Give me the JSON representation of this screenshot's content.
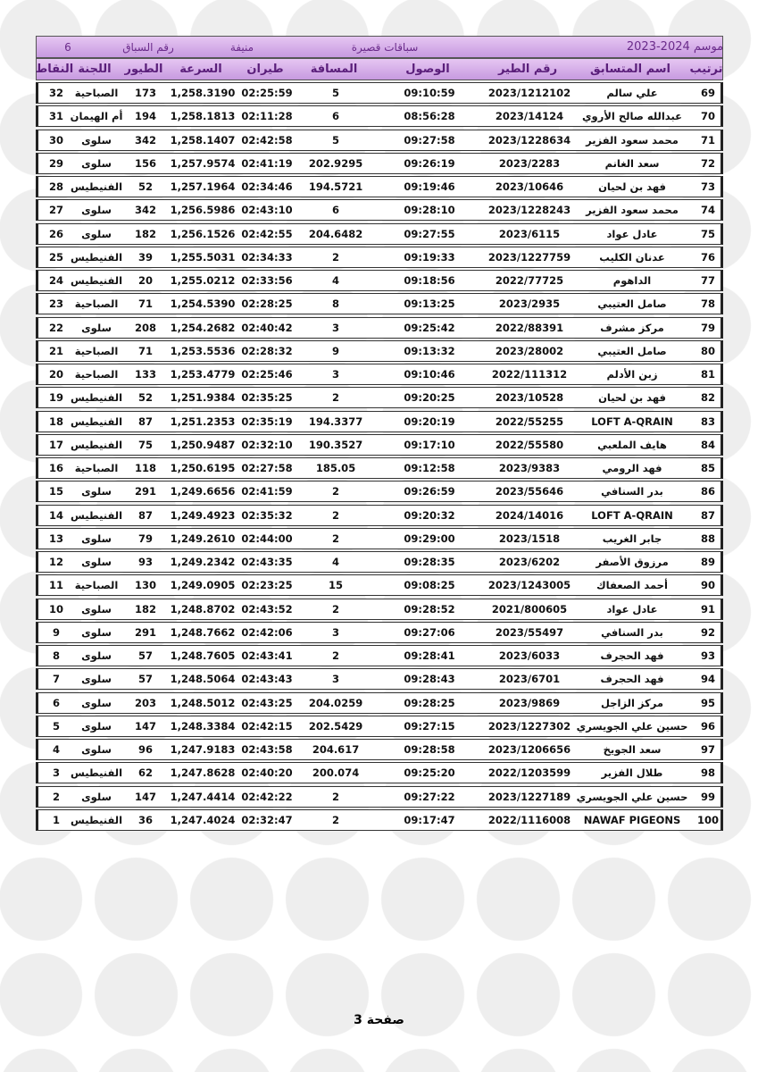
{
  "header": {
    "season": "موسم 2024-2023",
    "race_type": "سباقات قصيرة",
    "location": "منيفة",
    "race_number_label": "رقم السباق",
    "race_number": "6"
  },
  "table": {
    "columns": [
      "ترتيب",
      "اسم المتسابق",
      "رقم الطير",
      "الوصول",
      "المسافة",
      "طيران",
      "السرعة",
      "الطيور",
      "اللجنة",
      "النقاط"
    ],
    "rows": [
      [
        "69",
        "علي سالم",
        "2023/1212102",
        "09:10:59",
        "5",
        "02:25:59",
        "1,258.3190",
        "173",
        "الصباحية",
        "32"
      ],
      [
        "70",
        "عبدالله صالح الأروي",
        "2023/14124",
        "08:56:28",
        "6",
        "02:11:28",
        "1,258.1813",
        "194",
        "أم الهيمان",
        "31"
      ],
      [
        "71",
        "محمد سعود الفزير",
        "2023/1228634",
        "09:27:58",
        "5",
        "02:42:58",
        "1,258.1407",
        "342",
        "سلوى",
        "30"
      ],
      [
        "72",
        "سعد الغانم",
        "2023/2283",
        "09:26:19",
        "202.9295",
        "02:41:19",
        "1,257.9574",
        "156",
        "سلوى",
        "29"
      ],
      [
        "73",
        "فهد بن لحيان",
        "2023/10646",
        "09:19:46",
        "194.5721",
        "02:34:46",
        "1,257.1964",
        "52",
        "الفنيطيس",
        "28"
      ],
      [
        "74",
        "محمد سعود الفزير",
        "2023/1228243",
        "09:28:10",
        "6",
        "02:43:10",
        "1,256.5986",
        "342",
        "سلوى",
        "27"
      ],
      [
        "75",
        "عادل عواد",
        "2023/6115",
        "09:27:55",
        "204.6482",
        "02:42:55",
        "1,256.1526",
        "182",
        "سلوى",
        "26"
      ],
      [
        "76",
        "عدنان الكليب",
        "2023/1227759",
        "09:19:33",
        "2",
        "02:34:33",
        "1,255.5031",
        "39",
        "الفنيطيس",
        "25"
      ],
      [
        "77",
        "الداهوم",
        "2022/77725",
        "09:18:56",
        "4",
        "02:33:56",
        "1,255.0212",
        "20",
        "الفنيطيس",
        "24"
      ],
      [
        "78",
        "صامل العتيبي",
        "2023/2935",
        "09:13:25",
        "8",
        "02:28:25",
        "1,254.5390",
        "71",
        "الصباحية",
        "23"
      ],
      [
        "79",
        "مركز مشرف",
        "2022/88391",
        "09:25:42",
        "3",
        "02:40:42",
        "1,254.2682",
        "208",
        "سلوى",
        "22"
      ],
      [
        "80",
        "صامل العتيبي",
        "2023/28002",
        "09:13:32",
        "9",
        "02:28:32",
        "1,253.5536",
        "71",
        "الصباحية",
        "21"
      ],
      [
        "81",
        "زبن الأدلم",
        "2022/111312",
        "09:10:46",
        "3",
        "02:25:46",
        "1,253.4779",
        "133",
        "الصباحية",
        "20"
      ],
      [
        "82",
        "فهد بن لحيان",
        "2023/10528",
        "09:20:25",
        "2",
        "02:35:25",
        "1,251.9384",
        "52",
        "الفنيطيس",
        "19"
      ],
      [
        "83",
        "LOFT A-QRAIN",
        "2022/55255",
        "09:20:19",
        "194.3377",
        "02:35:19",
        "1,251.2353",
        "87",
        "الفنيطيس",
        "18"
      ],
      [
        "84",
        "هايف الملعبي",
        "2022/55580",
        "09:17:10",
        "190.3527",
        "02:32:10",
        "1,250.9487",
        "75",
        "الفنيطيس",
        "17"
      ],
      [
        "85",
        "فهد الرومي",
        "2023/9383",
        "09:12:58",
        "185.05",
        "02:27:58",
        "1,250.6195",
        "118",
        "الصباحية",
        "16"
      ],
      [
        "86",
        "بدر السنافي",
        "2023/55646",
        "09:26:59",
        "2",
        "02:41:59",
        "1,249.6656",
        "291",
        "سلوى",
        "15"
      ],
      [
        "87",
        "LOFT A-QRAIN",
        "2024/14016",
        "09:20:32",
        "2",
        "02:35:32",
        "1,249.4923",
        "87",
        "الفنيطيس",
        "14"
      ],
      [
        "88",
        "جابر الغريب",
        "2023/1518",
        "09:29:00",
        "2",
        "02:44:00",
        "1,249.2610",
        "79",
        "سلوى",
        "13"
      ],
      [
        "89",
        "مرزوق الأصفر",
        "2023/6202",
        "09:28:35",
        "4",
        "02:43:35",
        "1,249.2342",
        "93",
        "سلوى",
        "12"
      ],
      [
        "90",
        "أحمد الصعفاك",
        "2023/1243005",
        "09:08:25",
        "15",
        "02:23:25",
        "1,249.0905",
        "130",
        "الصباحية",
        "11"
      ],
      [
        "91",
        "عادل عواد",
        "2021/800605",
        "09:28:52",
        "2",
        "02:43:52",
        "1,248.8702",
        "182",
        "سلوى",
        "10"
      ],
      [
        "92",
        "بدر السنافي",
        "2023/55497",
        "09:27:06",
        "3",
        "02:42:06",
        "1,248.7662",
        "291",
        "سلوى",
        "9"
      ],
      [
        "93",
        "فهد الحجرف",
        "2023/6033",
        "09:28:41",
        "2",
        "02:43:41",
        "1,248.7605",
        "57",
        "سلوى",
        "8"
      ],
      [
        "94",
        "فهد الحجرف",
        "2023/6701",
        "09:28:43",
        "3",
        "02:43:43",
        "1,248.5064",
        "57",
        "سلوى",
        "7"
      ],
      [
        "95",
        "مركز الزاجل",
        "2023/9869",
        "09:28:25",
        "204.0259",
        "02:43:25",
        "1,248.5012",
        "203",
        "سلوى",
        "6"
      ],
      [
        "96",
        "حسين علي الجويسري",
        "2023/1227302",
        "09:27:15",
        "202.5429",
        "02:42:15",
        "1,248.3384",
        "147",
        "سلوى",
        "5"
      ],
      [
        "97",
        "سعد الجويخ",
        "2023/1206656",
        "09:28:58",
        "204.617",
        "02:43:58",
        "1,247.9183",
        "96",
        "سلوى",
        "4"
      ],
      [
        "98",
        "طلال الفزير",
        "2022/1203599",
        "09:25:20",
        "200.074",
        "02:40:20",
        "1,247.8628",
        "62",
        "الفنيطيس",
        "3"
      ],
      [
        "99",
        "حسين علي الجويسري",
        "2023/1227189",
        "09:27:22",
        "2",
        "02:42:22",
        "1,247.4414",
        "147",
        "سلوى",
        "2"
      ],
      [
        "100",
        "NAWAF PIGEONS",
        "2022/1116008",
        "09:17:47",
        "2",
        "02:32:47",
        "1,247.4024",
        "36",
        "الفنيطيس",
        "1"
      ]
    ]
  },
  "footer": {
    "page": "صفحة 3"
  }
}
